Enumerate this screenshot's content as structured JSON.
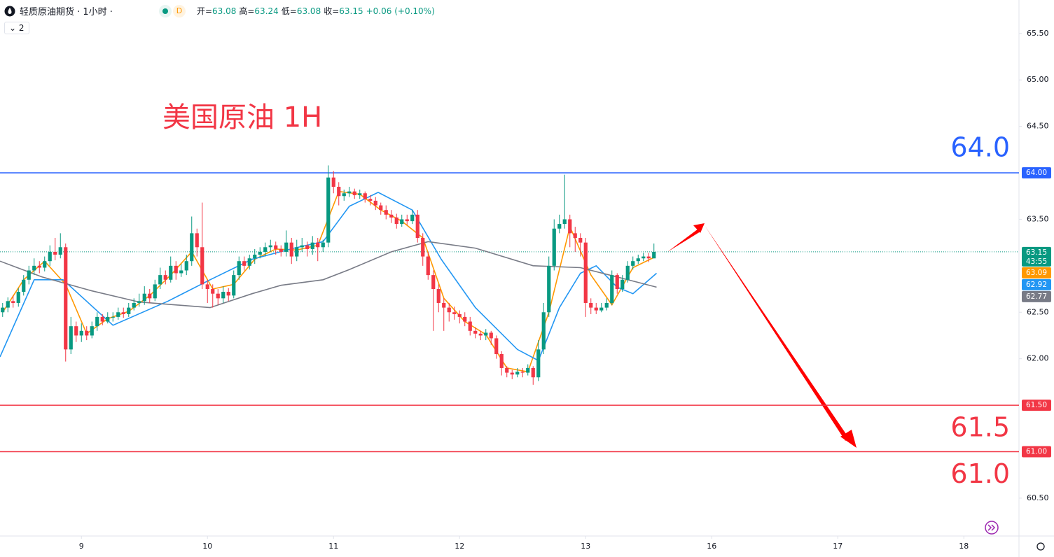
{
  "header": {
    "symbol": "轻质原油期货 · 1小时 ·",
    "badge": "D",
    "ohlc": [
      {
        "label": "开=",
        "value": 63.08
      },
      {
        "label": "高=",
        "value": 63.24
      },
      {
        "label": "低=",
        "value": 63.08
      },
      {
        "label": "收=",
        "value": 63.15
      }
    ],
    "change": "+0.06 (+0.10%)",
    "indicator_count": 2
  },
  "chart_data": {
    "type": "candlestick",
    "title": "美国原油 1H",
    "countdown": "43:55",
    "up_color": "#089981",
    "down_color": "#f23645",
    "xlim": [
      -15.5,
      178.5
    ],
    "ylim": [
      60.1,
      65.86
    ],
    "xticks": [
      {
        "value": 0,
        "label": "9"
      },
      {
        "value": 24,
        "label": "10"
      },
      {
        "value": 48,
        "label": "11"
      },
      {
        "value": 72,
        "label": "12"
      },
      {
        "value": 96,
        "label": "13"
      },
      {
        "value": 120,
        "label": "16"
      },
      {
        "value": 144,
        "label": "17"
      },
      {
        "value": 168,
        "label": "18"
      }
    ],
    "yticks": [
      {
        "value": 65.5,
        "label": "65.50"
      },
      {
        "value": 65,
        "label": "65.00"
      },
      {
        "value": 64.5,
        "label": "64.50"
      },
      {
        "value": 63.5,
        "label": "63.50"
      },
      {
        "value": 62.5,
        "label": "62.50"
      },
      {
        "value": 62,
        "label": "62.00"
      },
      {
        "value": 60.5,
        "label": "60.50"
      }
    ],
    "x": [
      -15,
      -14,
      -13,
      -12,
      -11,
      -10,
      -9,
      -8,
      -7,
      -6,
      -5,
      -4,
      -3,
      -2,
      -1,
      0,
      1,
      2,
      3,
      4,
      5,
      6,
      7,
      8,
      9,
      10,
      11,
      12,
      13,
      14,
      15,
      16,
      17,
      18,
      19,
      20,
      21,
      22,
      23,
      24,
      25,
      26,
      27,
      28,
      29,
      30,
      31,
      32,
      33,
      34,
      35,
      36,
      37,
      38,
      39,
      40,
      41,
      42,
      43,
      44,
      45,
      46,
      47,
      48,
      49,
      50,
      51,
      52,
      53,
      54,
      55,
      56,
      57,
      58,
      59,
      60,
      61,
      62,
      63,
      64,
      65,
      66,
      67,
      68,
      69,
      70,
      71,
      72,
      73,
      74,
      75,
      76,
      77,
      78,
      79,
      80,
      81,
      82,
      83,
      84,
      85,
      86,
      87,
      88,
      89,
      90,
      91,
      92,
      93,
      94,
      95,
      96,
      97,
      98,
      99,
      100,
      101,
      102,
      103,
      104,
      105,
      106,
      107,
      108,
      109
    ],
    "open": [
      62.5,
      62.55,
      62.62,
      62.6,
      62.72,
      62.85,
      62.95,
      63.0,
      62.98,
      63.05,
      63.15,
      63.12,
      63.2,
      62.1,
      62.35,
      62.25,
      62.3,
      62.25,
      62.35,
      62.45,
      62.4,
      62.45,
      62.45,
      62.5,
      62.48,
      62.55,
      62.6,
      62.62,
      62.7,
      62.65,
      62.8,
      62.9,
      62.85,
      63.0,
      62.92,
      62.95,
      63.05,
      63.35,
      63.2,
      62.8,
      62.75,
      62.7,
      62.65,
      62.72,
      62.68,
      62.9,
      63.05,
      63.0,
      63.08,
      63.12,
      63.15,
      63.2,
      63.22,
      63.18,
      63.15,
      63.25,
      63.1,
      63.2,
      63.22,
      63.18,
      63.25,
      63.2,
      63.25,
      63.95,
      63.85,
      63.75,
      63.78,
      63.8,
      63.76,
      63.78,
      63.72,
      63.7,
      63.65,
      63.6,
      63.55,
      63.52,
      63.45,
      63.5,
      63.48,
      63.55,
      63.3,
      63.1,
      62.9,
      62.75,
      62.6,
      62.55,
      62.5,
      62.48,
      62.45,
      62.4,
      62.3,
      62.27,
      62.25,
      62.28,
      62.22,
      62.05,
      61.9,
      61.85,
      61.83,
      61.86,
      61.85,
      61.9,
      61.8,
      62.1,
      62.5,
      63.0,
      63.4,
      63.45,
      63.5,
      63.35,
      63.3,
      63.25,
      62.6,
      62.55,
      62.52,
      62.55,
      62.6,
      62.9,
      62.75,
      62.85,
      63.0,
      63.05,
      63.08,
      63.1,
      63.08
    ],
    "high": [
      62.6,
      62.66,
      62.68,
      62.76,
      62.9,
      63.0,
      63.08,
      63.05,
      63.1,
      63.22,
      63.3,
      63.35,
      63.24,
      62.45,
      62.4,
      62.38,
      62.35,
      62.4,
      62.5,
      62.48,
      62.5,
      62.5,
      62.55,
      62.55,
      62.6,
      62.65,
      62.7,
      62.78,
      62.75,
      62.85,
      62.98,
      62.95,
      63.1,
      63.05,
      63.02,
      63.12,
      63.53,
      63.4,
      63.68,
      62.85,
      62.8,
      62.75,
      62.78,
      62.76,
      62.95,
      63.1,
      63.1,
      63.12,
      63.18,
      63.2,
      63.25,
      63.28,
      63.26,
      63.22,
      63.38,
      63.3,
      63.28,
      63.3,
      63.26,
      63.32,
      63.3,
      63.28,
      64.08,
      64.02,
      63.9,
      63.82,
      63.85,
      63.83,
      63.82,
      63.8,
      63.76,
      63.74,
      63.68,
      63.65,
      63.6,
      63.56,
      63.55,
      63.55,
      63.6,
      63.6,
      63.35,
      63.15,
      62.95,
      62.8,
      62.65,
      62.6,
      62.56,
      62.52,
      62.5,
      62.45,
      62.34,
      62.3,
      62.32,
      62.3,
      62.25,
      62.08,
      61.92,
      61.88,
      61.9,
      61.9,
      61.94,
      61.92,
      62.2,
      62.6,
      63.1,
      63.5,
      63.55,
      63.98,
      63.55,
      63.42,
      63.35,
      63.3,
      62.65,
      62.6,
      62.6,
      62.65,
      62.95,
      62.92,
      62.9,
      63.05,
      63.1,
      63.12,
      63.14,
      63.14,
      63.24
    ],
    "low": [
      62.45,
      62.5,
      62.55,
      62.56,
      62.68,
      62.8,
      62.9,
      62.92,
      62.94,
      63.0,
      63.06,
      63.08,
      61.97,
      62.05,
      62.18,
      62.18,
      62.2,
      62.22,
      62.3,
      62.36,
      62.38,
      62.4,
      62.42,
      62.44,
      62.45,
      62.52,
      62.56,
      62.58,
      62.6,
      62.62,
      62.75,
      62.8,
      62.82,
      62.85,
      62.88,
      62.9,
      63.0,
      63.1,
      62.75,
      62.6,
      62.55,
      62.58,
      62.6,
      62.62,
      62.65,
      62.85,
      62.95,
      62.96,
      63.02,
      63.08,
      63.1,
      63.15,
      63.12,
      63.1,
      63.1,
      63.02,
      63.05,
      63.15,
      63.1,
      63.12,
      63.05,
      63.15,
      63.2,
      63.78,
      63.65,
      63.7,
      63.74,
      63.72,
      63.72,
      63.68,
      63.65,
      63.6,
      63.55,
      63.5,
      63.46,
      63.4,
      63.42,
      63.44,
      63.45,
      63.25,
      63.0,
      62.85,
      62.3,
      62.5,
      62.3,
      62.4,
      62.42,
      62.38,
      62.35,
      62.25,
      62.22,
      62.2,
      62.2,
      62.15,
      62.0,
      61.82,
      61.8,
      61.78,
      61.8,
      61.8,
      61.82,
      61.72,
      61.76,
      62.05,
      62.45,
      62.95,
      63.35,
      63.4,
      63.2,
      63.15,
      63.1,
      62.45,
      62.48,
      62.48,
      62.5,
      62.52,
      62.58,
      62.7,
      62.72,
      62.82,
      62.96,
      63.02,
      63.05,
      63.04,
      63.08
    ],
    "close": [
      62.55,
      62.62,
      62.6,
      62.72,
      62.85,
      62.95,
      63.0,
      62.98,
      63.05,
      63.15,
      63.12,
      63.2,
      62.1,
      62.35,
      62.25,
      62.3,
      62.25,
      62.35,
      62.45,
      62.4,
      62.45,
      62.45,
      62.5,
      62.48,
      62.55,
      62.6,
      62.62,
      62.7,
      62.65,
      62.8,
      62.9,
      62.85,
      63.0,
      62.92,
      62.95,
      63.05,
      63.35,
      63.2,
      62.8,
      62.75,
      62.7,
      62.65,
      62.72,
      62.68,
      62.9,
      63.05,
      63.0,
      63.08,
      63.12,
      63.15,
      63.2,
      63.22,
      63.18,
      63.15,
      63.25,
      63.1,
      63.2,
      63.22,
      63.18,
      63.25,
      63.2,
      63.25,
      63.95,
      63.85,
      63.75,
      63.78,
      63.8,
      63.76,
      63.78,
      63.72,
      63.7,
      63.65,
      63.6,
      63.55,
      63.52,
      63.45,
      63.5,
      63.48,
      63.55,
      63.3,
      63.1,
      62.9,
      62.75,
      62.6,
      62.55,
      62.5,
      62.48,
      62.45,
      62.4,
      62.3,
      62.27,
      62.25,
      62.28,
      62.22,
      62.05,
      61.9,
      61.85,
      61.83,
      61.86,
      61.85,
      61.9,
      61.8,
      62.1,
      62.5,
      63.0,
      63.4,
      63.45,
      63.5,
      63.35,
      63.3,
      63.25,
      62.6,
      62.55,
      62.52,
      62.55,
      62.6,
      62.9,
      62.75,
      62.85,
      63.0,
      63.05,
      63.08,
      63.1,
      63.08,
      63.15
    ],
    "series": [
      {
        "color": "#ff9800",
        "x": [
          -15,
          -11,
          -7,
          -3,
          1,
          5,
          9,
          13,
          17,
          21,
          25,
          29,
          33,
          37,
          41,
          45,
          49,
          53,
          57,
          61,
          65,
          69,
          73,
          77,
          81,
          85,
          89,
          93,
          97,
          101,
          105,
          109
        ],
        "values": [
          62.5,
          62.85,
          63.05,
          62.8,
          62.27,
          62.43,
          62.51,
          62.68,
          62.9,
          63.15,
          62.75,
          62.8,
          63.07,
          63.18,
          63.17,
          63.22,
          63.8,
          63.77,
          63.6,
          63.48,
          63.3,
          62.65,
          62.4,
          62.26,
          61.9,
          61.86,
          62.5,
          63.42,
          62.9,
          62.58,
          62.98,
          63.09
        ]
      },
      {
        "color": "#2196f3",
        "x": [
          -15.5,
          -9,
          -3.5,
          6,
          16.5,
          24.5,
          32.5,
          40.5,
          46,
          51,
          56.5,
          63,
          68.5,
          75,
          83,
          87,
          91,
          95,
          98,
          102,
          105,
          109.5
        ],
        "values": [
          62.02,
          62.85,
          62.85,
          62.36,
          62.62,
          62.85,
          63.07,
          63.19,
          63.26,
          63.64,
          63.79,
          63.6,
          63.07,
          62.55,
          62.1,
          61.98,
          62.55,
          62.92,
          63.0,
          62.77,
          62.7,
          62.92
        ]
      },
      {
        "color": "#787b86",
        "x": [
          -15.5,
          -7.5,
          2,
          11,
          24.5,
          32.5,
          38,
          46,
          51,
          59,
          66,
          75,
          86,
          95,
          102,
          109.5
        ],
        "values": [
          63.05,
          62.88,
          62.73,
          62.61,
          62.55,
          62.7,
          62.79,
          62.85,
          62.96,
          63.15,
          63.26,
          63.19,
          63.0,
          62.98,
          62.88,
          62.77
        ]
      }
    ],
    "levels": [
      {
        "value": 64,
        "label": "64.00",
        "annotation": "64.0",
        "color": "#2962ff"
      },
      {
        "value": 61.5,
        "label": "61.50",
        "annotation": "61.5",
        "color": "#f23645"
      },
      {
        "value": 61,
        "label": "61.00",
        "annotation": "61.0",
        "color": "#f23645"
      }
    ]
  }
}
